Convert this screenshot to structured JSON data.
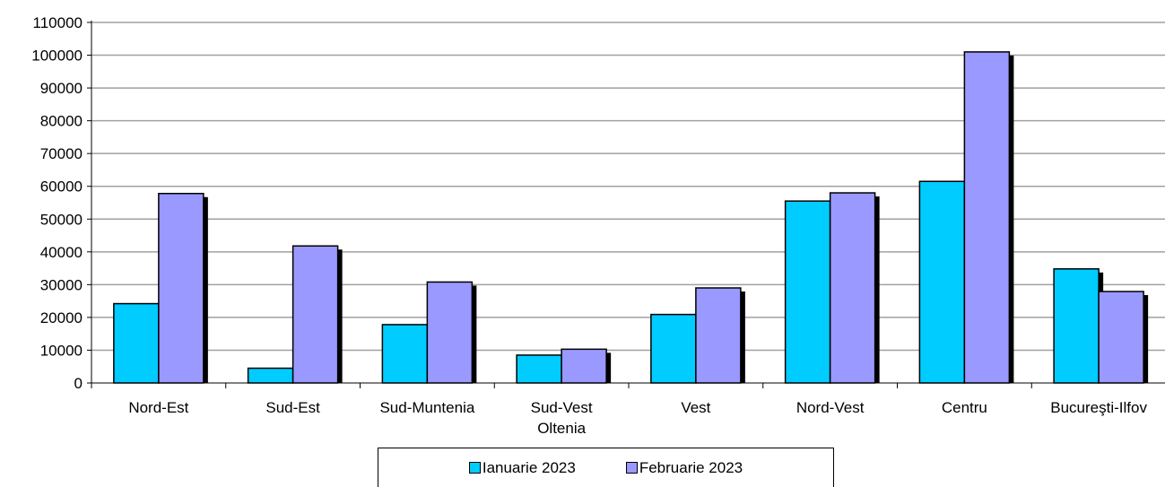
{
  "chart_data": {
    "type": "bar",
    "title": "",
    "xlabel": "",
    "ylabel": "",
    "ylim": [
      0,
      110000
    ],
    "yticks": [
      0,
      10000,
      20000,
      30000,
      40000,
      50000,
      60000,
      70000,
      80000,
      90000,
      100000,
      110000
    ],
    "grid": true,
    "legend_position": "bottom",
    "categories": [
      {
        "line1": "Nord-Est",
        "line2": ""
      },
      {
        "line1": "Sud-Est",
        "line2": ""
      },
      {
        "line1": "Sud-Muntenia",
        "line2": ""
      },
      {
        "line1": "Sud-Vest",
        "line2": "Oltenia"
      },
      {
        "line1": "Vest",
        "line2": ""
      },
      {
        "line1": "Nord-Vest",
        "line2": ""
      },
      {
        "line1": "Centru",
        "line2": ""
      },
      {
        "line1": "Bucureşti-Ilfov",
        "line2": ""
      }
    ],
    "series": [
      {
        "name": "Ianuarie 2023",
        "color": "#00ccff",
        "values": [
          24200,
          4500,
          17800,
          8500,
          20900,
          55500,
          61500,
          34800
        ]
      },
      {
        "name": "Februarie 2023",
        "color": "#9999ff",
        "values": [
          57800,
          41800,
          30800,
          10300,
          29000,
          58000,
          101000,
          27900
        ]
      }
    ]
  }
}
